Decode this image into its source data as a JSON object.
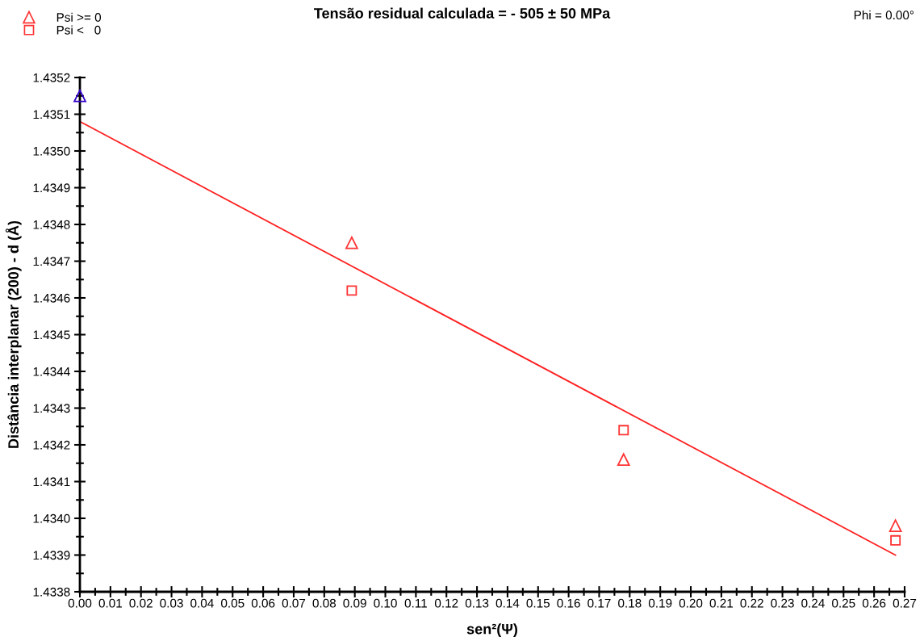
{
  "chart_data": {
    "type": "scatter",
    "title": "Tensão residual calculada = - 505 ± 50 MPa",
    "xlabel": "sen²(Ψ)",
    "ylabel": "Distância interplanar (200) - d (Å)",
    "annotations": [
      "Phi = 0.00°"
    ],
    "series": [
      {
        "name": "Psi >= 0",
        "marker": "triangle",
        "x": [
          0.0,
          0.089,
          0.178,
          0.267
        ],
        "values": [
          1.43515,
          1.43475,
          1.43416,
          1.43398
        ],
        "colors": [
          "#3300cc",
          "#ff3333",
          "#ff3333",
          "#ff3333"
        ]
      },
      {
        "name": "Psi <   0",
        "marker": "square",
        "x": [
          0.089,
          0.178,
          0.267
        ],
        "values": [
          1.43462,
          1.43424,
          1.43394
        ],
        "color": "#ff3333"
      },
      {
        "type": "line",
        "marker": "none",
        "x": [
          0.0,
          0.267
        ],
        "values": [
          1.43508,
          1.4339
        ],
        "color": "#ff2020"
      }
    ],
    "xlim": [
      0,
      0.27
    ],
    "ylim": [
      1.4338,
      1.4352
    ],
    "xticks": [
      {
        "value": 0,
        "label": "0.00"
      },
      0.01,
      0.02,
      0.03,
      0.04,
      0.05,
      0.06,
      0.07,
      0.08,
      0.09,
      {
        "value": 0.1,
        "label": "0.10"
      },
      0.11,
      0.12,
      0.13,
      0.14,
      0.15,
      0.16,
      0.17,
      0.18,
      0.19,
      {
        "value": 0.2,
        "label": "0.20"
      },
      0.21,
      0.22,
      0.23,
      0.24,
      0.25,
      0.26,
      0.27
    ],
    "yticks": [
      1.4338,
      1.4339,
      {
        "value": 1.434,
        "label": "1.4340"
      },
      1.4341,
      1.4342,
      1.4343,
      1.4344,
      1.4345,
      1.4346,
      1.4347,
      1.4348,
      1.4349,
      {
        "value": 1.435,
        "label": "1.4350"
      },
      1.4351,
      1.4352
    ],
    "grid": false,
    "legend": "top left"
  }
}
